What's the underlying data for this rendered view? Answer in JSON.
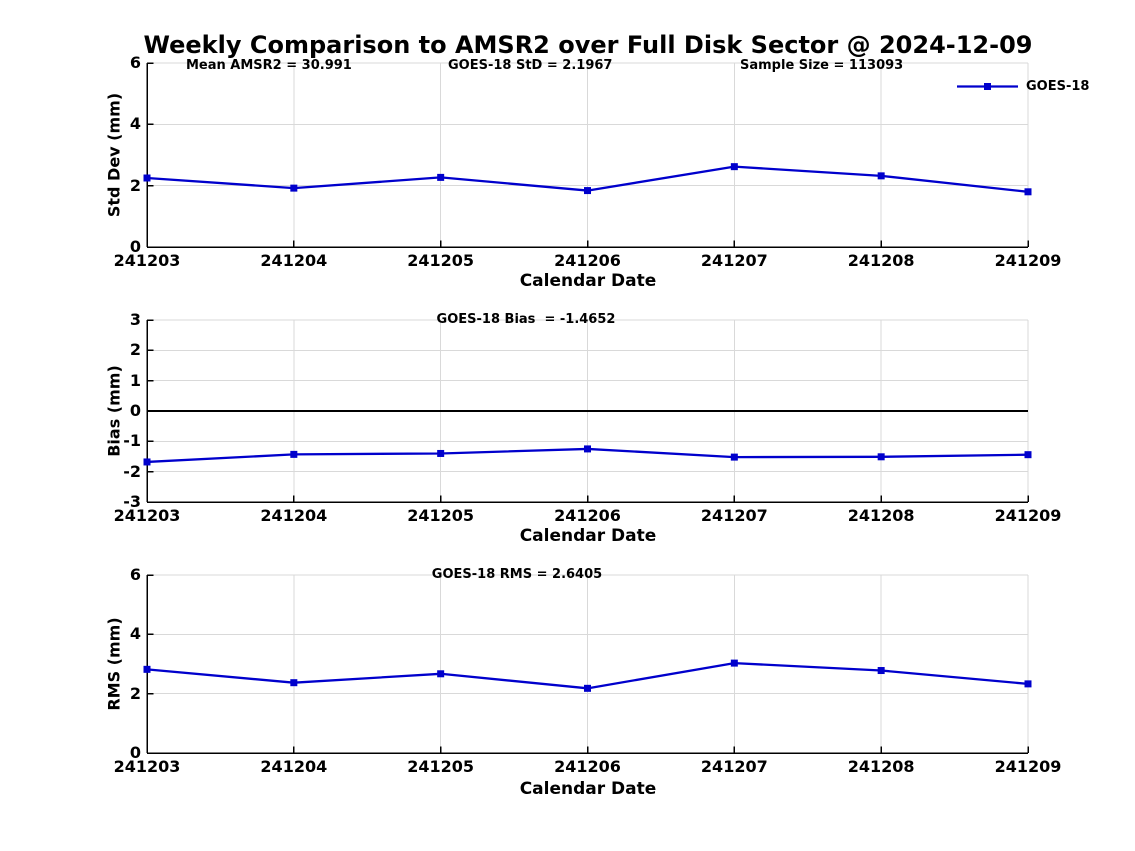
{
  "title": "Weekly Comparison to AMSR2 over Full Disk Sector @ 2024-12-09",
  "xlabel": "Calendar Date",
  "categories": [
    "241203",
    "241204",
    "241205",
    "241206",
    "241207",
    "241208",
    "241209"
  ],
  "legend": {
    "label": "GOES-18"
  },
  "colors": {
    "line": "#0000CC",
    "grid": "#D9D9D9",
    "axis": "#000000",
    "zero_line": "#000000",
    "text": "#000000"
  },
  "chart_data": [
    {
      "type": "line",
      "id": "std-dev",
      "ylabel": "Std Dev (mm)",
      "ylim": [
        0,
        6
      ],
      "yticks": [
        6,
        4,
        2,
        0
      ],
      "grid": true,
      "annotations": [
        "Mean AMSR2 = 30.991",
        "GOES-18 StD = 2.1967",
        "Sample Size = 113093"
      ],
      "legend_position": "top-right",
      "series": [
        {
          "name": "GOES-18",
          "values": [
            2.25,
            1.92,
            2.27,
            1.84,
            2.62,
            2.32,
            1.8
          ]
        }
      ]
    },
    {
      "type": "line",
      "id": "bias",
      "ylabel": "Bias (mm)",
      "ylim": [
        -3,
        3
      ],
      "yticks": [
        3,
        2,
        1,
        0,
        -1,
        -2,
        -3
      ],
      "grid": true,
      "zero_line": true,
      "annotations": [
        "GOES-18 Bias  = -1.4652"
      ],
      "series": [
        {
          "name": "GOES-18",
          "values": [
            -1.68,
            -1.43,
            -1.4,
            -1.25,
            -1.52,
            -1.51,
            -1.44
          ]
        }
      ]
    },
    {
      "type": "line",
      "id": "rms",
      "ylabel": "RMS (mm)",
      "ylim": [
        0,
        6
      ],
      "yticks": [
        6,
        4,
        2,
        0
      ],
      "grid": true,
      "annotations": [
        "GOES-18 RMS = 2.6405"
      ],
      "series": [
        {
          "name": "GOES-18",
          "values": [
            2.82,
            2.37,
            2.67,
            2.18,
            3.03,
            2.78,
            2.33
          ]
        }
      ]
    }
  ]
}
